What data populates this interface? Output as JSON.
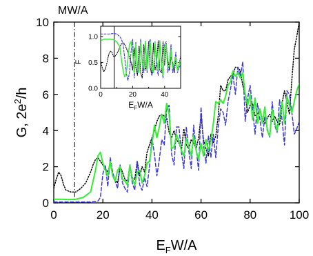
{
  "chart_data": [
    {
      "type": "line",
      "title": "",
      "annotation": "MW/A",
      "annotation_x": 8.5,
      "xlabel_main": "E",
      "xlabel_sub": "F",
      "xlabel_rest": "W/A",
      "ylabel_main": "G, 2e",
      "ylabel_sup": "2",
      "ylabel_rest": "/h",
      "xlim": [
        0,
        100
      ],
      "ylim": [
        0,
        10
      ],
      "xticks": [
        0,
        20,
        40,
        60,
        80,
        100
      ],
      "yticks": [
        0,
        2,
        4,
        6,
        8,
        10
      ],
      "grid": false,
      "series": [
        {
          "color": "#000000",
          "dash": "dotted",
          "x": [
            0,
            1,
            2,
            3,
            4,
            5,
            7,
            9,
            11,
            13,
            15,
            16,
            17,
            18,
            19,
            20,
            21,
            22,
            23,
            24,
            25,
            26,
            27,
            28,
            29,
            30,
            31,
            32,
            33,
            34,
            35,
            36,
            37,
            38,
            39,
            40,
            41,
            42,
            43,
            44,
            45,
            46,
            47,
            48,
            49,
            50,
            51,
            52,
            53,
            54,
            55,
            56,
            57,
            58,
            59,
            60,
            61,
            62,
            63,
            64,
            65,
            66,
            67,
            68,
            69,
            70,
            71,
            72,
            73,
            74,
            75,
            76,
            77,
            78,
            79,
            80,
            81,
            82,
            83,
            84,
            85,
            86,
            87,
            88,
            89,
            90,
            91,
            92,
            93,
            94,
            95,
            96,
            97,
            98,
            99,
            100
          ],
          "y": [
            0.8,
            1.3,
            1.7,
            1.5,
            1.0,
            0.7,
            0.6,
            0.6,
            0.8,
            1.1,
            1.7,
            2.1,
            2.4,
            2.5,
            2.3,
            2.1,
            1.9,
            1.7,
            2.2,
            1.5,
            1.3,
            1.1,
            2.0,
            1.7,
            1.3,
            1.2,
            2.1,
            1.4,
            1.3,
            2.3,
            1.5,
            2.0,
            1.7,
            2.8,
            3.2,
            3.6,
            4.0,
            4.5,
            4.8,
            4.9,
            4.8,
            4.7,
            3.9,
            3.6,
            4.0,
            3.5,
            3.3,
            2.9,
            4.1,
            3.2,
            3.0,
            3.5,
            3.3,
            3.0,
            3.6,
            4.8,
            3.5,
            3.0,
            2.6,
            3.8,
            3.3,
            3.7,
            4.8,
            6.5,
            6.2,
            6.2,
            6.8,
            7.0,
            7.1,
            7.5,
            7.5,
            7.3,
            6.5,
            6.0,
            5.0,
            5.4,
            5.5,
            4.8,
            4.9,
            5.2,
            4.6,
            4.4,
            4.7,
            4.9,
            4.5,
            4.8,
            4.5,
            4.3,
            5.5,
            6.2,
            5.6,
            4.9,
            6.8,
            8.5,
            9.2,
            10.0
          ]
        },
        {
          "color": "#3a3ad8",
          "dash": "dashed",
          "x": [
            0,
            5,
            10,
            15,
            18,
            19,
            20,
            21,
            22,
            23,
            24,
            25,
            26,
            27,
            28,
            29,
            30,
            31,
            32,
            33,
            34,
            35,
            36,
            37,
            38,
            39,
            40,
            41,
            42,
            43,
            44,
            45,
            46,
            47,
            48,
            49,
            50,
            51,
            52,
            53,
            54,
            55,
            56,
            57,
            58,
            59,
            60,
            61,
            62,
            63,
            64,
            65,
            66,
            67,
            68,
            69,
            70,
            71,
            72,
            73,
            74,
            75,
            76,
            77,
            78,
            79,
            80,
            81,
            82,
            83,
            84,
            85,
            86,
            87,
            88,
            89,
            90,
            91,
            92,
            93,
            94,
            95,
            96,
            97,
            98,
            99,
            100
          ],
          "y": [
            0.05,
            0.05,
            0.05,
            0.05,
            0.1,
            0.3,
            1.6,
            2.1,
            0.9,
            2.5,
            1.7,
            1.2,
            0.8,
            2.1,
            1.1,
            0.8,
            0.6,
            2.1,
            1.1,
            0.7,
            2.3,
            1.0,
            0.7,
            1.4,
            0.9,
            2.0,
            3.6,
            2.7,
            1.5,
            2.4,
            3.5,
            3.2,
            5.2,
            5.4,
            2.7,
            2.1,
            4.2,
            4.2,
            2.8,
            1.9,
            4.2,
            2.9,
            1.9,
            4.3,
            3.0,
            1.8,
            5.3,
            3.2,
            2.2,
            3.7,
            2.5,
            3.8,
            2.5,
            4.2,
            5.2,
            5.0,
            4.3,
            5.6,
            6.3,
            7.1,
            6.0,
            7.5,
            7.0,
            7.8,
            4.5,
            5.8,
            6.5,
            5.2,
            3.8,
            5.5,
            4.6,
            3.6,
            4.8,
            4.1,
            3.6,
            5.6,
            4.3,
            3.9,
            5.7,
            4.6,
            3.2,
            6.2,
            6.0,
            5.0,
            3.8,
            4.1,
            4.5
          ]
        },
        {
          "color": "#33ee33",
          "dash": "solid",
          "x": [
            0,
            3,
            6,
            9,
            12,
            15,
            17,
            18,
            19,
            20,
            21,
            22,
            23,
            24,
            25,
            26,
            27,
            28,
            29,
            30,
            31,
            32,
            33,
            34,
            35,
            36,
            37,
            38,
            39,
            40,
            41,
            42,
            43,
            44,
            45,
            46,
            47,
            48,
            49,
            50,
            51,
            52,
            53,
            54,
            55,
            56,
            57,
            58,
            59,
            60,
            61,
            62,
            63,
            64,
            65,
            66,
            67,
            68,
            69,
            70,
            71,
            72,
            73,
            74,
            75,
            76,
            77,
            78,
            79,
            80,
            81,
            82,
            83,
            84,
            85,
            86,
            87,
            88,
            89,
            90,
            91,
            92,
            93,
            94,
            95,
            96,
            97,
            98,
            99,
            100
          ],
          "y": [
            0.2,
            0.2,
            0.18,
            0.2,
            0.3,
            0.6,
            1.8,
            2.6,
            2.8,
            2.2,
            1.8,
            1.5,
            2.3,
            1.5,
            1.2,
            1.8,
            2.0,
            1.3,
            1.2,
            1.0,
            2.1,
            1.3,
            1.0,
            1.7,
            1.8,
            1.1,
            1.5,
            2.2,
            2.3,
            3.2,
            4.3,
            3.6,
            4.2,
            4.9,
            4.4,
            5.5,
            4.9,
            3.0,
            3.1,
            3.8,
            3.4,
            2.9,
            2.6,
            3.6,
            3.1,
            2.6,
            3.7,
            2.9,
            2.4,
            3.3,
            2.6,
            3.5,
            2.9,
            3.4,
            4.4,
            5.6,
            5.5,
            5.7,
            5.5,
            5.9,
            6.5,
            6.7,
            7.3,
            7.0,
            7.2,
            6.9,
            7.2,
            6.0,
            5.4,
            6.0,
            4.6,
            5.8,
            4.4,
            5.2,
            4.4,
            5.3,
            4.0,
            3.7,
            5.2,
            4.5,
            4.0,
            4.8,
            5.6,
            4.4,
            5.9,
            5.4,
            5.0,
            5.6,
            6.2,
            6.6
          ]
        }
      ]
    },
    {
      "type": "line",
      "title": "",
      "xlabel_main": "E",
      "xlabel_sub": "F",
      "xlabel_rest": "W/A",
      "ylabel": "F",
      "xlim": [
        0,
        50
      ],
      "ylim": [
        0,
        1.2
      ],
      "xticks": [
        0,
        20,
        40
      ],
      "xminor": [
        10,
        30,
        50
      ],
      "yticks": [
        0.0,
        0.5,
        1.0
      ],
      "ytick_labels": [
        "0.0",
        "0.5",
        "1.0"
      ],
      "vline_x": 8.5,
      "grid": false,
      "series": [
        {
          "color": "#000000",
          "dash": "dotted",
          "x": [
            0,
            1,
            2,
            3,
            4,
            5,
            6,
            7,
            8,
            9,
            10,
            11,
            12,
            13,
            14,
            15,
            16,
            17,
            18,
            19,
            20,
            21,
            22,
            23,
            24,
            25,
            26,
            27,
            28,
            29,
            30,
            31,
            32,
            33,
            34,
            35,
            36,
            37,
            38,
            39,
            40,
            41,
            42,
            43,
            44,
            45,
            46,
            47,
            48,
            49,
            50
          ],
          "y": [
            0.52,
            0.4,
            0.32,
            0.38,
            0.5,
            0.65,
            0.72,
            0.7,
            0.62,
            0.62,
            0.66,
            0.72,
            0.8,
            0.86,
            0.88,
            0.85,
            0.78,
            0.7,
            0.6,
            0.5,
            0.35,
            0.78,
            0.4,
            0.25,
            0.82,
            0.3,
            0.2,
            0.85,
            0.35,
            0.45,
            0.9,
            0.4,
            0.25,
            0.88,
            0.35,
            0.5,
            0.92,
            0.35,
            0.3,
            0.9,
            0.45,
            0.85,
            0.55,
            0.35,
            0.6,
            0.5,
            0.3,
            0.55,
            0.4,
            0.45,
            0.62
          ]
        },
        {
          "color": "#3a3ad8",
          "dash": "dashed",
          "x": [
            0,
            2,
            4,
            6,
            8,
            10,
            12,
            13,
            14,
            15,
            16,
            17,
            18,
            19,
            20,
            21,
            22,
            23,
            24,
            25,
            26,
            27,
            28,
            29,
            30,
            31,
            32,
            33,
            34,
            35,
            36,
            37,
            38,
            39,
            40,
            41,
            42,
            43,
            44,
            45,
            46,
            47,
            48,
            49,
            50
          ],
          "y": [
            1.05,
            1.05,
            1.05,
            1.05,
            1.06,
            1.05,
            1.0,
            0.95,
            0.85,
            0.6,
            0.3,
            0.15,
            0.3,
            0.7,
            0.95,
            0.2,
            0.9,
            0.3,
            0.4,
            0.95,
            0.5,
            0.3,
            0.92,
            0.3,
            0.85,
            0.95,
            0.25,
            0.35,
            0.9,
            0.4,
            0.25,
            0.92,
            0.45,
            0.2,
            0.85,
            0.9,
            0.3,
            0.5,
            0.85,
            0.3,
            0.45,
            0.7,
            0.3,
            0.4,
            0.45
          ]
        },
        {
          "color": "#33ee33",
          "dash": "solid",
          "x": [
            0,
            2,
            4,
            6,
            8,
            10,
            12,
            13,
            14,
            15,
            16,
            17,
            18,
            19,
            20,
            21,
            22,
            23,
            24,
            25,
            26,
            27,
            28,
            29,
            30,
            31,
            32,
            33,
            34,
            35,
            36,
            37,
            38,
            39,
            40,
            41,
            42,
            43,
            44,
            45,
            46,
            47,
            48,
            49,
            50
          ],
          "y": [
            0.92,
            0.95,
            0.95,
            0.95,
            0.94,
            0.9,
            0.8,
            0.55,
            0.35,
            0.22,
            0.3,
            0.55,
            0.85,
            0.9,
            0.7,
            0.3,
            0.85,
            0.35,
            0.3,
            0.88,
            0.5,
            0.4,
            0.9,
            0.35,
            0.7,
            0.9,
            0.4,
            0.3,
            0.88,
            0.55,
            0.35,
            0.9,
            0.5,
            0.25,
            0.8,
            0.85,
            0.4,
            0.45,
            0.75,
            0.4,
            0.5,
            0.6,
            0.35,
            0.45,
            0.55
          ]
        }
      ]
    }
  ]
}
